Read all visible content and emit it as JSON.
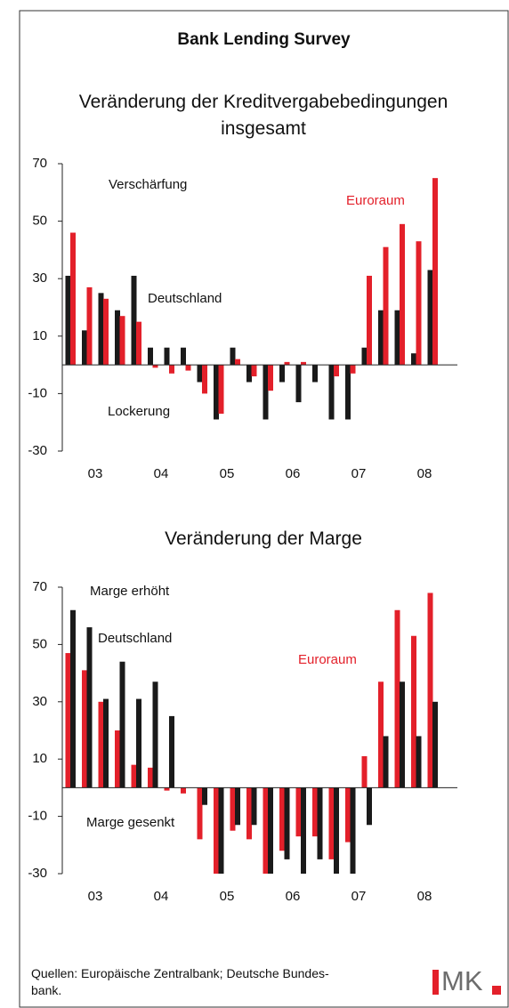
{
  "title": "Bank Lending Survey",
  "logo": "MK",
  "source": [
    "Quellen: Europäische Zentralbank; Deutsche Bundes-",
    "bank."
  ],
  "chart_data": [
    {
      "type": "bar",
      "title": "Veränderung der Kreditvergabebedingungen insgesamt",
      "x": [
        2003,
        2003.25,
        2003.5,
        2003.75,
        2004,
        2004.25,
        2004.5,
        2004.75,
        2005,
        2005.25,
        2005.5,
        2005.75,
        2006,
        2006.25,
        2006.5,
        2006.75,
        2007,
        2007.25,
        2007.5,
        2007.75,
        2008,
        2008.25,
        2008.5
      ],
      "xlim": [
        2003,
        2009
      ],
      "xticks": [
        {
          "value": 2003.5,
          "label": "03"
        },
        {
          "value": 2004.5,
          "label": "04"
        },
        {
          "value": 2005.5,
          "label": "05"
        },
        {
          "value": 2006.5,
          "label": "06"
        },
        {
          "value": 2007.5,
          "label": "07"
        },
        {
          "value": 2008.5,
          "label": "08"
        }
      ],
      "ylim": [
        -30,
        70
      ],
      "yticks": [
        70,
        50,
        30,
        10,
        -10,
        -30
      ],
      "annotations": [
        "Verschärfung",
        "Lockerung"
      ],
      "series": [
        {
          "name": "Deutschland",
          "color": "#1a1a1a",
          "values": [
            31,
            12,
            25,
            19,
            31,
            6,
            6,
            6,
            -6,
            -19,
            6,
            -6,
            -19,
            -6,
            -13,
            -6,
            -19,
            -19,
            6,
            19,
            19,
            4,
            33
          ]
        },
        {
          "name": "Euroraum",
          "color": "#e3202a",
          "values": [
            46,
            27,
            23,
            17,
            15,
            -1,
            -3,
            -2,
            -10,
            -17,
            2,
            -4,
            -9,
            1,
            1,
            0,
            -4,
            -3,
            31,
            41,
            49,
            43,
            65
          ]
        }
      ]
    },
    {
      "type": "bar",
      "title": "Veränderung der Marge",
      "x": [
        2003,
        2003.25,
        2003.5,
        2003.75,
        2004,
        2004.25,
        2004.5,
        2004.75,
        2005,
        2005.25,
        2005.5,
        2005.75,
        2006,
        2006.25,
        2006.5,
        2006.75,
        2007,
        2007.25,
        2007.5,
        2007.75,
        2008,
        2008.25,
        2008.5
      ],
      "xlim": [
        2003,
        2009
      ],
      "xticks": [
        {
          "value": 2003.5,
          "label": "03"
        },
        {
          "value": 2004.5,
          "label": "04"
        },
        {
          "value": 2005.5,
          "label": "05"
        },
        {
          "value": 2006.5,
          "label": "06"
        },
        {
          "value": 2007.5,
          "label": "07"
        },
        {
          "value": 2008.5,
          "label": "08"
        }
      ],
      "ylim": [
        -30,
        70
      ],
      "yticks": [
        70,
        50,
        30,
        10,
        -10,
        -30
      ],
      "annotations": [
        "Marge erhöht",
        "Marge gesenkt"
      ],
      "series": [
        {
          "name": "Euroraum",
          "color": "#e3202a",
          "values": [
            47,
            41,
            30,
            20,
            8,
            7,
            -1,
            -2,
            -18,
            -30,
            -15,
            -18,
            -30,
            -22,
            -17,
            -17,
            -25,
            -19,
            11,
            37,
            62,
            53,
            68
          ]
        },
        {
          "name": "Deutschland",
          "color": "#1a1a1a",
          "values": [
            62,
            56,
            31,
            44,
            31,
            37,
            25,
            0,
            -6,
            -30,
            -13,
            -13,
            -30,
            -25,
            -30,
            -25,
            -30,
            -30,
            -13,
            18,
            37,
            18,
            30
          ]
        }
      ]
    }
  ]
}
